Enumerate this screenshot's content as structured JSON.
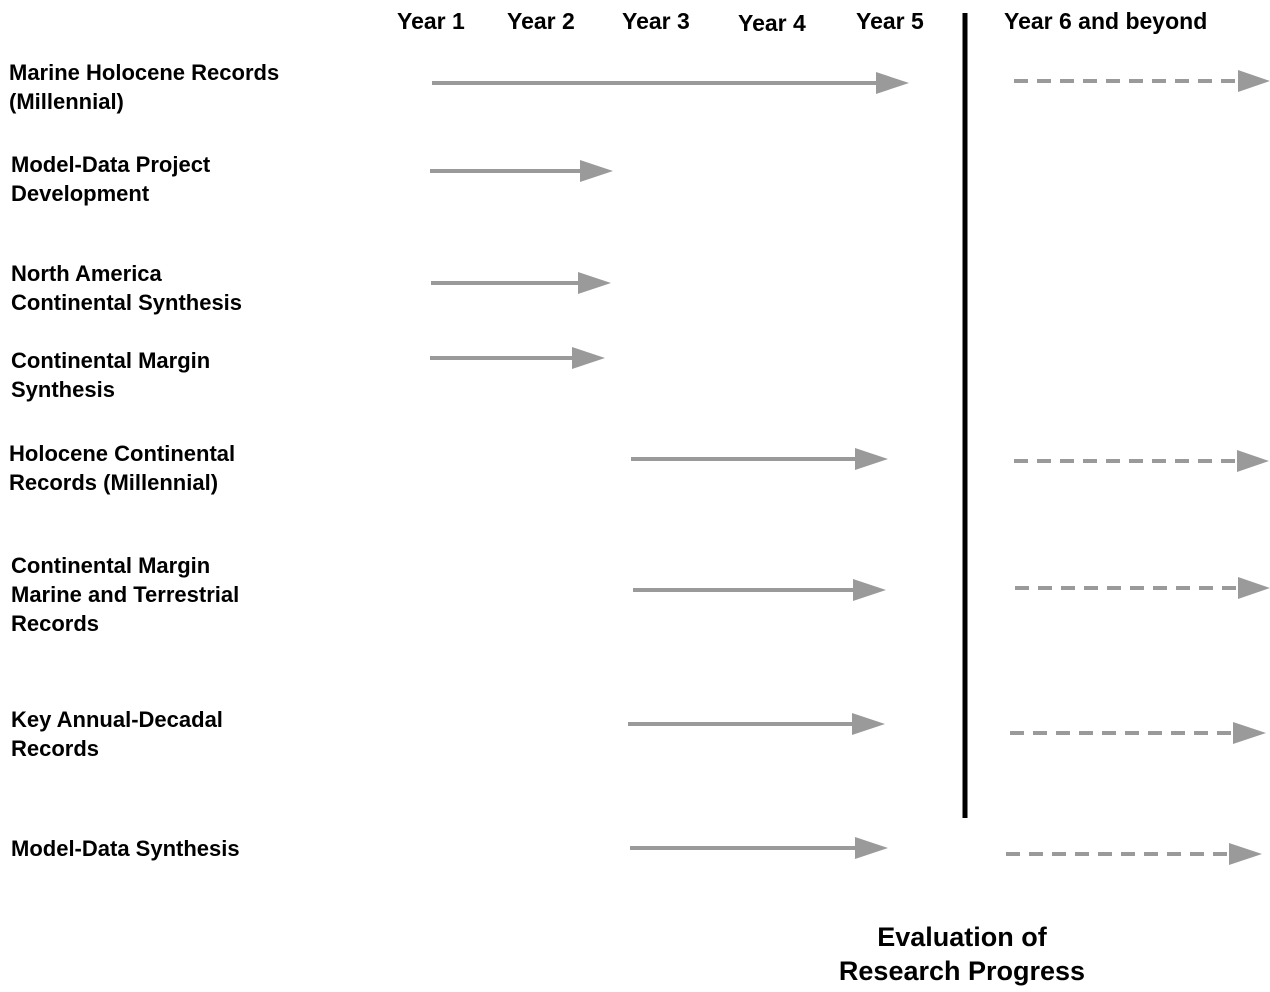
{
  "timeline": {
    "years": [
      "Year 1",
      "Year 2",
      "Year 3",
      "Year 4",
      "Year 5",
      "Year 6 and beyond"
    ]
  },
  "tasks": [
    {
      "lines": [
        "Marine Holocene Records",
        "(Millennial)"
      ],
      "start": 1,
      "end": 5,
      "continues": true
    },
    {
      "lines": [
        "Model-Data Project",
        "Development"
      ],
      "start": 1,
      "end": 2,
      "continues": false
    },
    {
      "lines": [
        "North America",
        "Continental Synthesis"
      ],
      "start": 1,
      "end": 2,
      "continues": false
    },
    {
      "lines": [
        "Continental Margin",
        "Synthesis"
      ],
      "start": 1,
      "end": 2,
      "continues": false
    },
    {
      "lines": [
        "Holocene Continental",
        "Records (Millennial)"
      ],
      "start": 3,
      "end": 5,
      "continues": true
    },
    {
      "lines": [
        "Continental Margin",
        "Marine and Terrestrial",
        "Records"
      ],
      "start": 3,
      "end": 5,
      "continues": true
    },
    {
      "lines": [
        "Key Annual-Decadal",
        "Records"
      ],
      "start": 3,
      "end": 5,
      "continues": true
    },
    {
      "lines": [
        "Model-Data Synthesis"
      ],
      "start": 3,
      "end": 5,
      "continues": true
    }
  ],
  "milestone": {
    "lines": [
      "Evaluation of",
      "Research Progress"
    ]
  },
  "colors": {
    "arrow": "#9a9a9a",
    "divider": "#000000",
    "text": "#000000"
  }
}
